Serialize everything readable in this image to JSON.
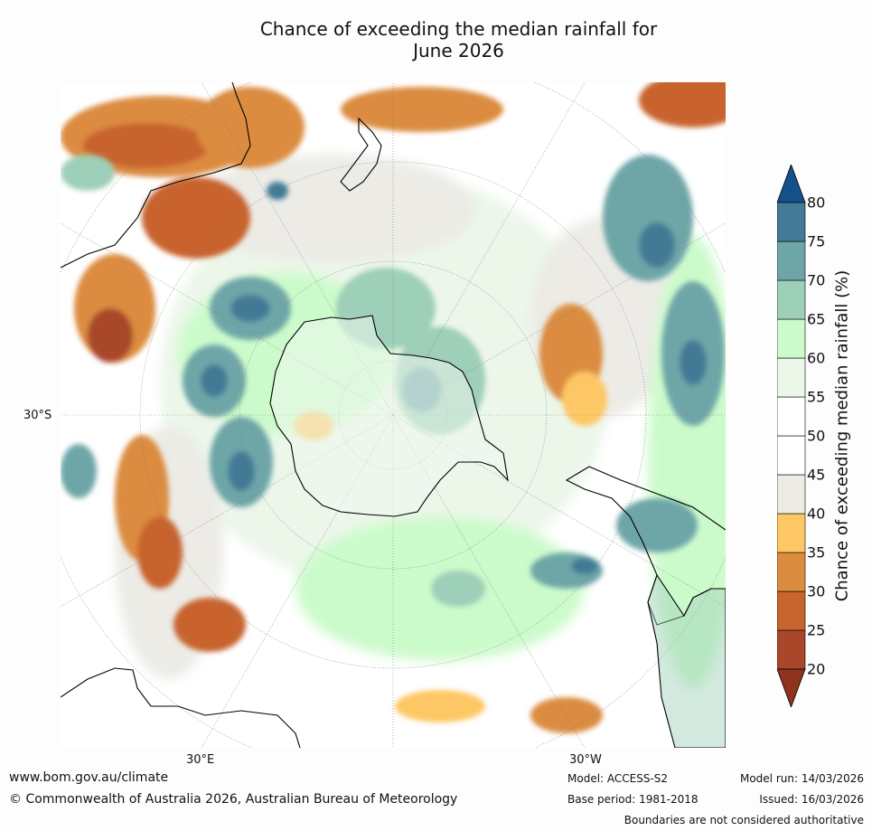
{
  "title": {
    "line1": "Chance of exceeding the median rainfall for",
    "line2": "June 2026"
  },
  "map": {
    "labels": {
      "lat_west": "30°S",
      "lon_east": "30°E",
      "lon_west": "30°W"
    },
    "colors": {
      "ocean_white": "#ffffff",
      "land_outline": "#000000"
    }
  },
  "legend": {
    "title": "Chance of exceeding median rainfall (%)",
    "ticks": [
      "20",
      "25",
      "30",
      "35",
      "40",
      "45",
      "50",
      "55",
      "60",
      "65",
      "70",
      "75",
      "80"
    ],
    "bins": [
      {
        "range": [
          20,
          25
        ],
        "color": "#a9472a"
      },
      {
        "range": [
          25,
          30
        ],
        "color": "#c8642d"
      },
      {
        "range": [
          30,
          35
        ],
        "color": "#db8c3f"
      },
      {
        "range": [
          35,
          40
        ],
        "color": "#fec765"
      },
      {
        "range": [
          40,
          45
        ],
        "color": "#ecebe6"
      },
      {
        "range": [
          45,
          50
        ],
        "color": "#ffffff"
      },
      {
        "range": [
          50,
          55
        ],
        "color": "#ffffff"
      },
      {
        "range": [
          55,
          60
        ],
        "color": "#ecf7ea"
      },
      {
        "range": [
          60,
          65
        ],
        "color": "#ccfbcb"
      },
      {
        "range": [
          65,
          70
        ],
        "color": "#9ecfb8"
      },
      {
        "range": [
          70,
          75
        ],
        "color": "#6ea6a8"
      },
      {
        "range": [
          75,
          80
        ],
        "color": "#437a96"
      }
    ],
    "under_color": "#8f321e",
    "over_color": "#16508a"
  },
  "footer": {
    "website": "www.bom.gov.au/climate",
    "copyright": "© Commonwealth of Australia 2026, Australian Bureau of Meteorology",
    "model": "Model: ACCESS-S2",
    "base_period": "Base period: 1981-2018",
    "model_run": "Model run: 14/03/2026",
    "issued": "Issued: 16/03/2026",
    "disclaimer": "Boundaries are not considered authoritative"
  }
}
